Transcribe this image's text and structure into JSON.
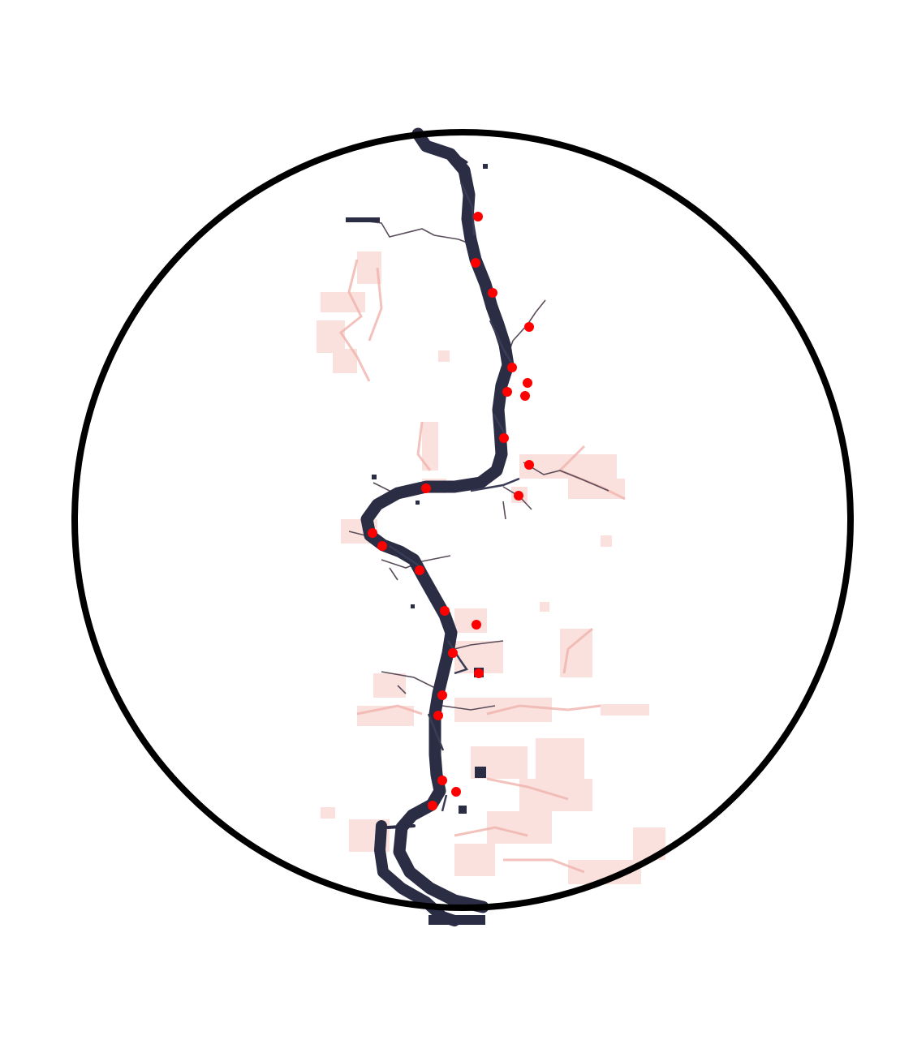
{
  "map": {
    "background_color": "#ffffff",
    "frame_color": "#000000",
    "river_color": "#2b2d45",
    "tributary_color": "#5a4d5a",
    "floodplain_color": "#f6c9c3",
    "site_marker_color": "#ff0000",
    "site_count": 24
  }
}
